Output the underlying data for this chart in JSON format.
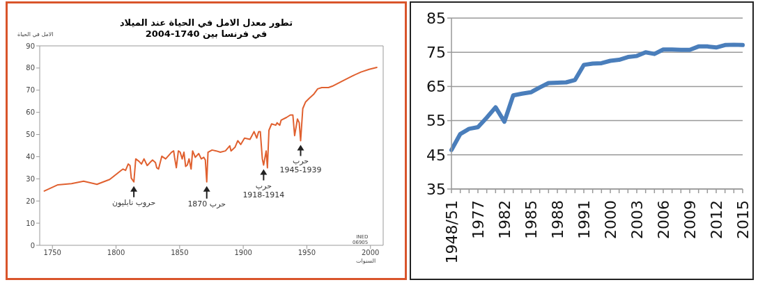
{
  "chart_data": [
    {
      "type": "line",
      "title": "تطور معدل الامل في الحياة عند الميلاد",
      "subtitle": "في فرنسا بين 1740-2004",
      "xlabel": "السنوات",
      "ylabel": "الامل في الحياة",
      "x": [
        1743.6,
        1754.3,
        1765,
        1774.5,
        1785,
        1795,
        1804,
        1805.5,
        1807.5,
        1809.6,
        1811,
        1812,
        1814,
        1815.5,
        1818,
        1820,
        1822,
        1824.5,
        1826.6,
        1828.7,
        1831,
        1832,
        1833.4,
        1836,
        1839,
        1843.6,
        1845.3,
        1846,
        1847.4,
        1849,
        1850.4,
        1852,
        1853.4,
        1854.7,
        1856,
        1857.4,
        1859,
        1860.2,
        1862.3,
        1865,
        1867,
        1869,
        1870.2,
        1871.3,
        1872.3,
        1875.5,
        1878.7,
        1882,
        1886,
        1889.4,
        1890.4,
        1893.6,
        1895.7,
        1898,
        1901,
        1905.3,
        1908.5,
        1910.6,
        1912.1,
        1913.4,
        1915,
        1916,
        1918,
        1919,
        1920.2,
        1922.3,
        1925.5,
        1926.6,
        1928.7,
        1929.8,
        1934,
        1937,
        1939,
        1940.4,
        1942.6,
        1944,
        1945.1,
        1946.8,
        1949,
        1952,
        1955.3,
        1958.5,
        1961.7,
        1967,
        1970,
        1979.8,
        1986,
        1992.6,
        1999,
        2005
      ],
      "series": [
        {
          "color": "#e0602f",
          "values": [
            24.5,
            27.3,
            27.8,
            28.9,
            27.5,
            29.7,
            33.8,
            34.4,
            33.8,
            36.7,
            36,
            30.3,
            28.6,
            39,
            37.9,
            36.7,
            39,
            36,
            37.3,
            38.5,
            37.3,
            35,
            34.4,
            40.2,
            39,
            42,
            42.6,
            39.7,
            35,
            42.6,
            42,
            39,
            42,
            35.6,
            36.2,
            39,
            34.4,
            42.6,
            39.7,
            41.4,
            39,
            39.7,
            38.5,
            28.6,
            42,
            43,
            42.6,
            42,
            42.6,
            44.9,
            42.6,
            44.3,
            47.2,
            45.5,
            48.4,
            47.8,
            51.3,
            48.4,
            51.3,
            51.3,
            39,
            36.2,
            42.6,
            35,
            51.9,
            54.8,
            54.2,
            55.3,
            54.2,
            56.5,
            57.7,
            58.8,
            58.8,
            49.5,
            57,
            55.3,
            47.2,
            61.7,
            64.7,
            66.4,
            68.1,
            70.6,
            71.2,
            71.2,
            71.8,
            74.7,
            76.5,
            78.2,
            79.4,
            80.3
          ]
        }
      ],
      "xlim": [
        1740,
        2010
      ],
      "ylim": [
        0,
        90
      ],
      "xticks": [
        1750,
        1800,
        1850,
        1900,
        1950,
        2000
      ],
      "yticks": [
        0,
        10,
        20,
        30,
        40,
        50,
        60,
        70,
        80,
        90
      ],
      "annotations": [
        {
          "text": "حروب نابليون",
          "x": 1814,
          "y": 28.6
        },
        {
          "text": "حرب 1870",
          "x": 1871.3,
          "y": 28.6
        },
        {
          "text": "حرب\n1918-1914",
          "x": 1916,
          "y": 36.2
        },
        {
          "text": "حرب\n1945-1939",
          "x": 1945.1,
          "y": 47.2
        },
        "INED\n06905"
      ]
    },
    {
      "type": "line",
      "categories": [
        "1948/51",
        null,
        null,
        "1977",
        null,
        null,
        "1982",
        null,
        null,
        "1985",
        null,
        null,
        "1988",
        null,
        null,
        "1991",
        null,
        null,
        "2000",
        null,
        null,
        "2003",
        null,
        null,
        "2006",
        null,
        null,
        "2009",
        null,
        null,
        "2012",
        null,
        null,
        "2015"
      ],
      "series": [
        {
          "color": "#4a7ebb",
          "values": [
            46.4,
            51.1,
            52.6,
            53.1,
            55.9,
            58.9,
            54.7,
            62.4,
            62.9,
            63.3,
            64.7,
            66.0,
            66.1,
            66.2,
            66.9,
            71.3,
            71.7,
            71.8,
            72.5,
            72.8,
            73.6,
            73.9,
            75.0,
            74.5,
            75.8,
            75.8,
            75.7,
            75.7,
            76.7,
            76.7,
            76.4,
            77.1,
            77.2,
            77.1
          ]
        }
      ],
      "ylim": [
        35,
        85
      ],
      "yticks": [
        35,
        45,
        55,
        65,
        75,
        85
      ],
      "grid": "y"
    }
  ]
}
